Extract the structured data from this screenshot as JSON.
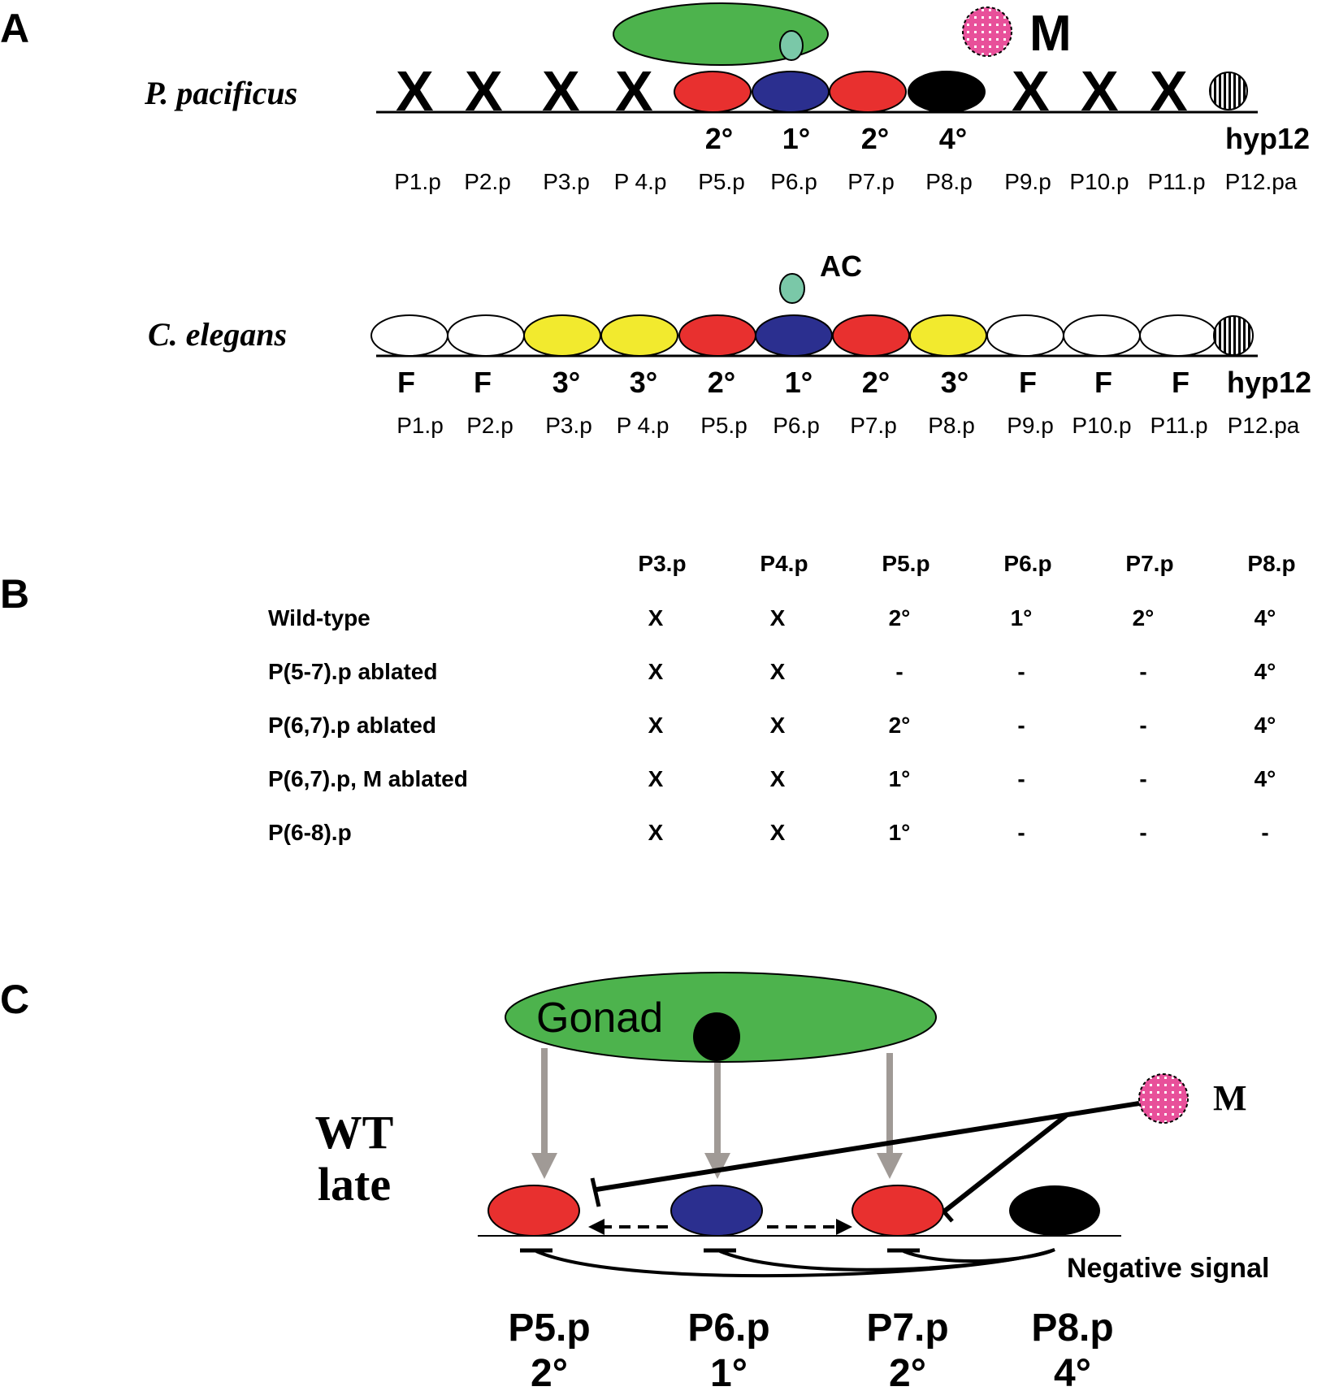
{
  "colors": {
    "gonad_green": "#4db34d",
    "ac_teal": "#7ac8a8",
    "secondary_red": "#e8302f",
    "primary_blue": "#2b2f8f",
    "tertiary_yellow": "#f2ea2e",
    "quaternary_black": "#000000",
    "m_cell_pink": "#e8509a",
    "arrow_gray": "#a09a96"
  },
  "panel_a": {
    "label": "A",
    "pacificus": {
      "species": "P. pacificus",
      "crosses": [
        "X",
        "X",
        "X",
        "X",
        "X",
        "X",
        "X"
      ],
      "fates": [
        "2°",
        "1°",
        "2°",
        "4°"
      ],
      "hyp12_label": "hyp12",
      "cells": [
        "P1.p",
        "P2.p",
        "P3.p",
        "P 4.p",
        "P5.p",
        "P6.p",
        "P7.p",
        "P8.p",
        "P9.p",
        "P10.p",
        "P11.p",
        "P12.pa"
      ],
      "m_label": "M"
    },
    "elegans": {
      "species": "C. elegans",
      "ac_label": "AC",
      "fates": [
        "F",
        "F",
        "3°",
        "3°",
        "2°",
        "1°",
        "2°",
        "3°",
        "F",
        "F",
        "F"
      ],
      "hyp12_label": "hyp12",
      "cells": [
        "P1.p",
        "P2.p",
        "P3.p",
        "P 4.p",
        "P5.p",
        "P6.p",
        "P7.p",
        "P8.p",
        "P9.p",
        "P10.p",
        "P11.p",
        "P12.pa"
      ]
    }
  },
  "panel_b": {
    "label": "B",
    "columns": [
      "P3.p",
      "P4.p",
      "P5.p",
      "P6.p",
      "P7.p",
      "P8.p"
    ],
    "rows": [
      {
        "label": "Wild-type",
        "values": [
          "X",
          "X",
          "2°",
          "1°",
          "2°",
          "4°"
        ]
      },
      {
        "label": "P(5-7).p ablated",
        "values": [
          "X",
          "X",
          "-",
          "-",
          "-",
          "4°"
        ]
      },
      {
        "label": "P(6,7).p ablated",
        "values": [
          "X",
          "X",
          "2°",
          "-",
          "-",
          "4°"
        ]
      },
      {
        "label": "P(6,7).p, M ablated",
        "values": [
          "X",
          "X",
          "1°",
          "-",
          "-",
          "4°"
        ]
      },
      {
        "label": "P(6-8).p",
        "values": [
          "X",
          "X",
          "1°",
          "-",
          "-",
          "-"
        ]
      }
    ]
  },
  "panel_c": {
    "label": "C",
    "gonad_label": "Gonad",
    "state_line1": "WT",
    "state_line2": "late",
    "m_label": "M",
    "negative_signal_label": "Negative signal",
    "cells": [
      {
        "name": "P5.p",
        "fate": "2°"
      },
      {
        "name": "P6.p",
        "fate": "1°"
      },
      {
        "name": "P7.p",
        "fate": "2°"
      },
      {
        "name": "P8.p",
        "fate": "4°"
      }
    ]
  }
}
